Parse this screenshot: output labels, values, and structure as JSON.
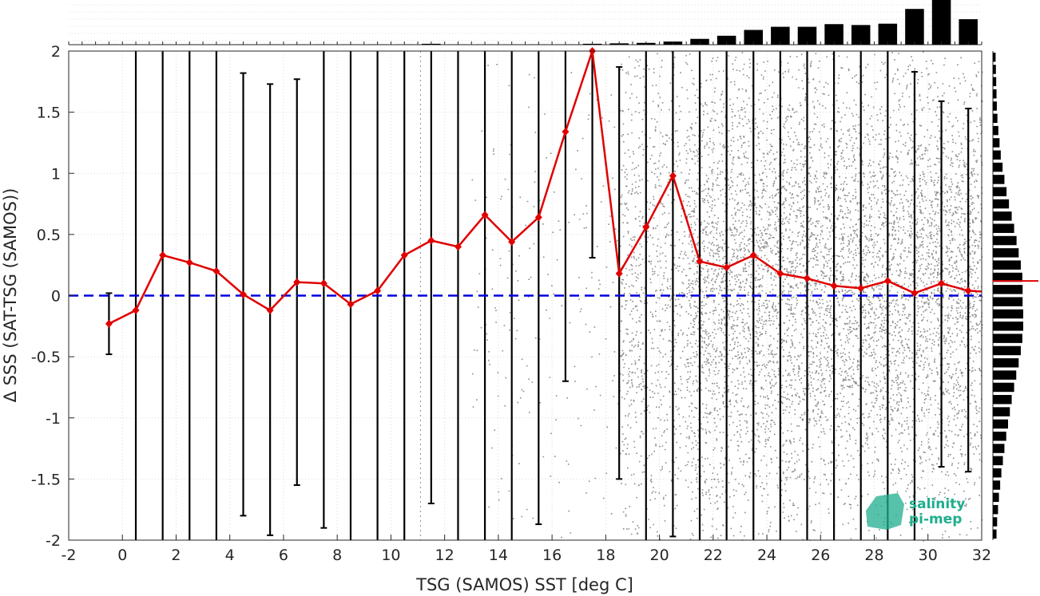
{
  "chart_data": {
    "type": "scatter",
    "xlabel": "TSG (SAMOS) SST [deg C]",
    "ylabel": "Δ SSS (SAT-TSG (SAMOS))",
    "xlim": [
      -2,
      32
    ],
    "ylim": [
      -2,
      2
    ],
    "xticks": [
      "-2",
      "0",
      "2",
      "4",
      "6",
      "8",
      "10",
      "12",
      "14",
      "16",
      "18",
      "20",
      "22",
      "24",
      "26",
      "28",
      "30",
      "32"
    ],
    "yticks": [
      "2",
      "1.5",
      "1",
      "0.5",
      "0",
      "-0.5",
      "-1",
      "-1.5",
      "-2"
    ],
    "grid": true,
    "zero_line": {
      "y": 0,
      "color": "#0000dd",
      "style": "dashed"
    },
    "scatter_color": "#8c8c8c",
    "line_color": "#e00000",
    "errorbar_color": "#000000",
    "bin_centers": [
      -0.5,
      0.5,
      1.5,
      2.5,
      3.5,
      4.5,
      5.5,
      6.5,
      7.5,
      8.5,
      9.5,
      10.5,
      11.5,
      12.5,
      13.5,
      14.5,
      15.5,
      16.5,
      17.5,
      18.5,
      19.5,
      20.5,
      21.5,
      22.5,
      23.5,
      24.5,
      25.5,
      26.5,
      27.5,
      28.5,
      29.5,
      30.5,
      31.5
    ],
    "mean_values": [
      -0.23,
      -0.12,
      0.33,
      0.27,
      0.2,
      0.01,
      -0.12,
      0.11,
      0.1,
      -0.07,
      0.04,
      0.33,
      0.45,
      0.4,
      0.66,
      0.44,
      0.64,
      1.34,
      2.05,
      0.18,
      0.56,
      0.98,
      0.28,
      0.23,
      0.33,
      0.18,
      0.14,
      0.08,
      0.06,
      0.12,
      0.02,
      0.1,
      0.04
    ],
    "errorbar_low": [
      -0.48,
      -2,
      -2,
      -2,
      -2,
      -1.8,
      -1.96,
      -1.55,
      -1.9,
      -2,
      -2,
      -2,
      -1.7,
      -2,
      -2,
      -2,
      -1.87,
      -0.7,
      0.31,
      -1.5,
      -2,
      -1.97,
      -2,
      -2,
      -2,
      -2,
      -2,
      -2,
      -2,
      -2,
      -2,
      -1.4,
      -1.44
    ],
    "errorbar_high": [
      0.02,
      2,
      2,
      2,
      2,
      1.82,
      1.73,
      1.77,
      2,
      2,
      2,
      2,
      2,
      2,
      2,
      2,
      2,
      2,
      2,
      1.87,
      2,
      2,
      2,
      2,
      2,
      2,
      2,
      2,
      2,
      2,
      1.83,
      1.59,
      1.53
    ],
    "top_histogram": {
      "bin_centers": [
        -0.5,
        0.5,
        1.5,
        2.5,
        3.5,
        4.5,
        5.5,
        6.5,
        7.5,
        8.5,
        9.5,
        10.5,
        11.5,
        12.5,
        13.5,
        14.5,
        15.5,
        16.5,
        17.5,
        18.5,
        19.5,
        20.5,
        21.5,
        22.5,
        23.5,
        24.5,
        25.5,
        26.5,
        27.5,
        28.5,
        29.5,
        30.5,
        31.5
      ],
      "relative_counts": [
        0.005,
        0.005,
        0.005,
        0.005,
        0.005,
        0.005,
        0.005,
        0.005,
        0.005,
        0.005,
        0.005,
        0.005,
        0.02,
        0.005,
        0.005,
        0.005,
        0.005,
        0.005,
        0.02,
        0.03,
        0.04,
        0.07,
        0.13,
        0.2,
        0.33,
        0.4,
        0.4,
        0.46,
        0.44,
        0.47,
        0.8,
        1.0,
        0.57
      ]
    },
    "right_histogram": {
      "mean_marker": 0.12,
      "bins_y": [
        -1.95,
        -1.85,
        -1.75,
        -1.65,
        -1.55,
        -1.45,
        -1.35,
        -1.25,
        -1.15,
        -1.05,
        -0.95,
        -0.85,
        -0.75,
        -0.65,
        -0.55,
        -0.45,
        -0.35,
        -0.25,
        -0.15,
        -0.05,
        0.05,
        0.15,
        0.25,
        0.35,
        0.45,
        0.55,
        0.65,
        0.75,
        0.85,
        0.95,
        1.05,
        1.15,
        1.25,
        1.35,
        1.45,
        1.55,
        1.65,
        1.75,
        1.85,
        1.95
      ],
      "relative_counts": [
        0.12,
        0.14,
        0.17,
        0.2,
        0.24,
        0.28,
        0.33,
        0.38,
        0.44,
        0.5,
        0.56,
        0.62,
        0.7,
        0.77,
        0.85,
        0.92,
        0.97,
        1.0,
        1.0,
        0.98,
        0.98,
        0.97,
        0.92,
        0.85,
        0.78,
        0.7,
        0.62,
        0.53,
        0.45,
        0.38,
        0.32,
        0.26,
        0.22,
        0.18,
        0.15,
        0.13,
        0.12,
        0.11,
        0.1,
        0.09
      ]
    }
  },
  "logo": {
    "line1": "salinity",
    "line2": "pi-mep",
    "color": "#1fae8e"
  }
}
